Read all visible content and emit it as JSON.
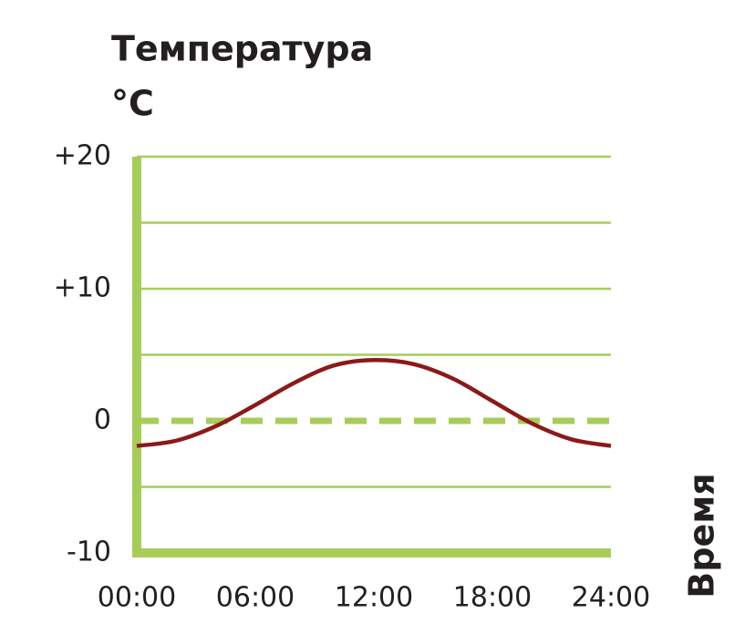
{
  "chart_data": {
    "type": "line",
    "title": "Температура",
    "y_unit": "°C",
    "x_label": "Время",
    "x": [
      0,
      2,
      4,
      6,
      8,
      10,
      12,
      14,
      16,
      18,
      20,
      22,
      24
    ],
    "series": [
      {
        "name": null,
        "color": "#8b1a1a",
        "values": [
          -1.9,
          -1.5,
          -0.4,
          1.2,
          2.9,
          4.2,
          4.6,
          4.3,
          3.2,
          1.5,
          -0.2,
          -1.4,
          -1.9
        ]
      }
    ],
    "xlim": [
      0,
      24
    ],
    "xticks": [
      {
        "value": 0,
        "label": "00:00"
      },
      {
        "value": 6,
        "label": "06:00"
      },
      {
        "value": 12,
        "label": "12:00"
      },
      {
        "value": 18,
        "label": "18:00"
      },
      {
        "value": 24,
        "label": "24:00"
      }
    ],
    "ylim": [
      -10,
      20
    ],
    "yticks": [
      {
        "value": 20,
        "label": "+20"
      },
      {
        "value": 10,
        "label": "+10"
      },
      0,
      -10
    ],
    "minor_yticks": [
      -5,
      5,
      15
    ],
    "grid": true,
    "grid_color": "#a8cc5a",
    "reference_line": {
      "value": 0,
      "style": "dashed"
    }
  }
}
